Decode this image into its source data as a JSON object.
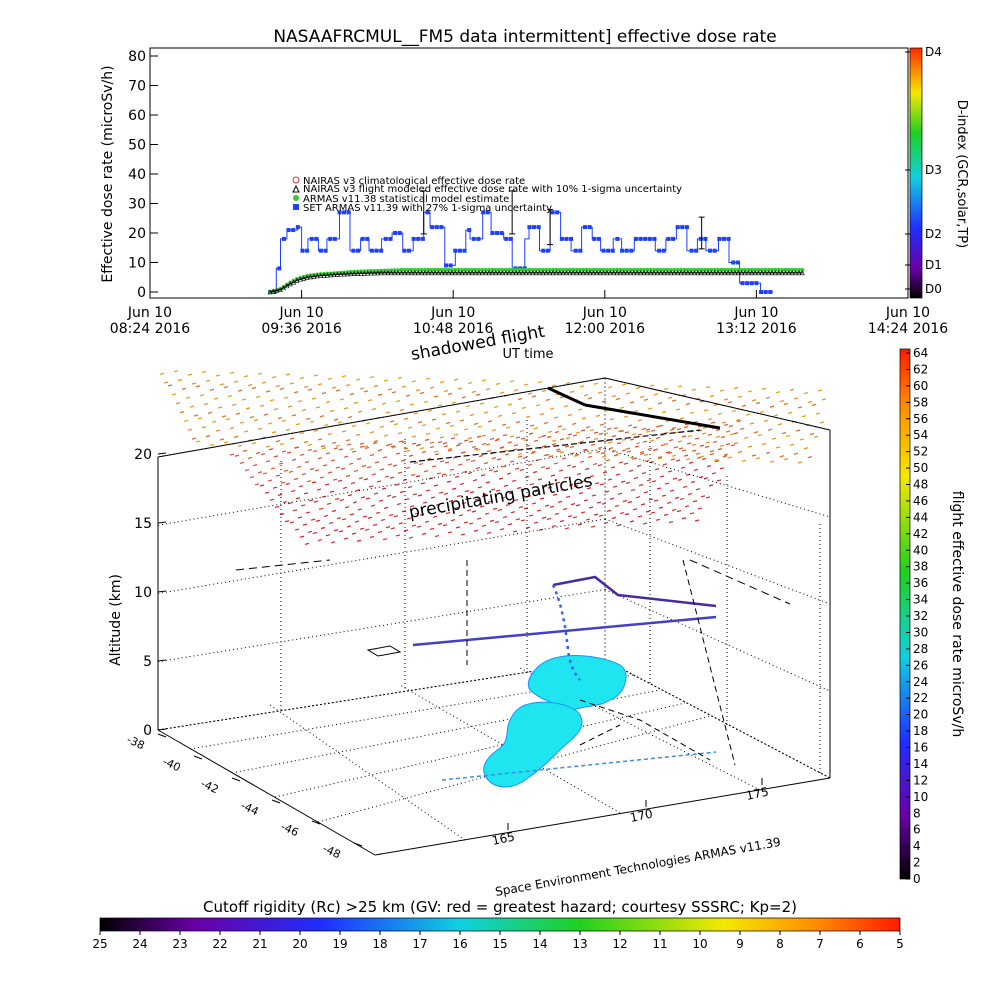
{
  "top_chart": {
    "title": "NASAAFRCMUL__FM5 data intermittent] effective dose rate",
    "ylabel": "Effective dose rate (microSv/h)",
    "xlabel": "UT time",
    "right_label": "D-index (GCR,solar,TP)",
    "legend": [
      "NAIRAS v3 climatological effective dose rate",
      "NAIRAS v3 flight modeled effective dose rate with 10% 1-sigma uncertainty",
      "ARMAS v11.38 statistical model estimate",
      "SET ARMAS v11.39 with 27% 1-sigma uncertainty"
    ],
    "yticks": [
      "0",
      "10",
      "20",
      "30",
      "40",
      "50",
      "60",
      "70",
      "80"
    ],
    "xticks": [
      {
        "top": "Jun 10",
        "bottom": "08:24 2016"
      },
      {
        "top": "Jun 10",
        "bottom": "09:36 2016"
      },
      {
        "top": "Jun 10",
        "bottom": "10:48 2016"
      },
      {
        "top": "Jun 10",
        "bottom": "12:00 2016"
      },
      {
        "top": "Jun 10",
        "bottom": "13:12 2016"
      },
      {
        "top": "Jun 10",
        "bottom": "14:24 2016"
      }
    ],
    "dindex_labels": [
      "D0",
      "D1",
      "D2",
      "D3",
      "D4"
    ]
  },
  "chart_data": [
    {
      "type": "line",
      "title": "NASAAFRCMUL__FM5 data intermittent] effective dose rate",
      "xlabel": "UT time",
      "ylabel": "Effective dose rate (microSv/h)",
      "ylim": [
        0,
        80
      ],
      "x_unit": "minutes after 08:24 UT, Jun 10 2016",
      "xlim": [
        0,
        360
      ],
      "series": [
        {
          "name": "SET ARMAS v11.39 with 27% 1-sigma uncertainty",
          "color": "#1f3fff",
          "x": [
            57,
            60,
            62,
            65,
            70,
            72,
            75,
            80,
            84,
            90,
            95,
            100,
            104,
            110,
            115,
            120,
            125,
            130,
            133,
            140,
            145,
            150,
            152,
            158,
            162,
            168,
            172,
            178,
            180,
            185,
            190,
            195,
            200,
            205,
            210,
            214,
            220,
            224,
            230,
            235,
            240,
            245,
            250,
            255,
            260,
            264,
            270,
            275,
            280,
            285,
            290,
            292,
            296
          ],
          "y": [
            0,
            8,
            18,
            21,
            22,
            14,
            18,
            14,
            18,
            27,
            14,
            18,
            14,
            18,
            20,
            14,
            18,
            27,
            22,
            9,
            14,
            21,
            18,
            27,
            20,
            18,
            8,
            18,
            22,
            14,
            27,
            18,
            14,
            22,
            18,
            14,
            18,
            14,
            18,
            18,
            14,
            18,
            22,
            14,
            18,
            14,
            18,
            10,
            3,
            3,
            0,
            0,
            0
          ]
        },
        {
          "name": "ARMAS v11.38 statistical model estimate",
          "color": "#33cc33",
          "x": [
            57,
            62,
            66,
            70,
            75,
            80,
            90,
            100,
            110,
            120,
            140,
            160,
            180,
            200,
            220,
            240,
            260,
            280,
            300,
            310
          ],
          "y": [
            0,
            1,
            3,
            4.5,
            5.5,
            6,
            6.5,
            7,
            7.2,
            7.5,
            7.5,
            7.5,
            7.5,
            7.5,
            7.5,
            7.5,
            7.5,
            7.5,
            7.5,
            7.5
          ]
        },
        {
          "name": "NAIRAS v3 flight modeled effective dose rate with 10% 1-sigma uncertainty",
          "color": "#000000",
          "x": [
            57,
            62,
            66,
            70,
            75,
            80,
            90,
            100,
            110,
            120,
            140,
            160,
            180,
            200,
            220,
            240,
            260,
            280,
            300,
            310
          ],
          "y": [
            0,
            0.8,
            2.5,
            4,
            5,
            5.5,
            6,
            6.3,
            6.5,
            6.5,
            6.5,
            6.5,
            6.5,
            6.5,
            6.5,
            6.5,
            6.5,
            6.5,
            6.5,
            6.5
          ]
        }
      ]
    },
    {
      "type": "scatter",
      "title": "",
      "zlabel": "Altitude (km)",
      "zlim": [
        0,
        20
      ],
      "zticks": [
        0,
        5,
        10,
        15,
        20
      ],
      "lat_ticks": [
        -38,
        -40,
        -42,
        -44,
        -46,
        -48
      ],
      "lon_ticks": [
        165,
        170,
        175
      ],
      "colorbar": {
        "label": "flight effective dose rate microSv/h",
        "min": 0,
        "max": 64,
        "ticks": [
          0,
          2,
          4,
          6,
          8,
          10,
          12,
          14,
          16,
          18,
          20,
          22,
          24,
          26,
          28,
          30,
          32,
          34,
          36,
          38,
          40,
          42,
          44,
          46,
          48,
          50,
          52,
          54,
          56,
          58,
          60,
          62,
          64
        ]
      }
    },
    {
      "type": "heatmap",
      "title": "Cutoff rigidity (Rc) >25 km (GV: red = greatest hazard; courtesy SSSRC; Kp=2)",
      "ticks": [
        25,
        24,
        23,
        22,
        21,
        20,
        19,
        18,
        17,
        16,
        15,
        14,
        13,
        12,
        11,
        10,
        9,
        8,
        7,
        6,
        5
      ]
    }
  ],
  "annotations": {
    "shadowed": "shadowed flight",
    "precip": "precipitating particles",
    "credit": "Space Environment Technologies ARMAS v11.39",
    "z_label": "Altitude (km)",
    "z_ticks": [
      "0",
      "5",
      "10",
      "15",
      "20"
    ],
    "lat_ticks": [
      "-38",
      "-40",
      "-42",
      "-44",
      "-46",
      "-48"
    ],
    "lon_ticks": [
      "165",
      "170",
      "175"
    ],
    "colorbar_label": "flight effective dose rate microSv/h",
    "cutoff_title": "Cutoff rigidity (Rc) >25 km (GV: red = greatest hazard; courtesy SSSRC; Kp=2)"
  },
  "colors": {
    "armas": "#1f3fff",
    "armas_model": "#33cc33",
    "nairas": "#000000",
    "nairas_clim": "#cc3333",
    "ocean_patch": "#1fe5f0"
  }
}
